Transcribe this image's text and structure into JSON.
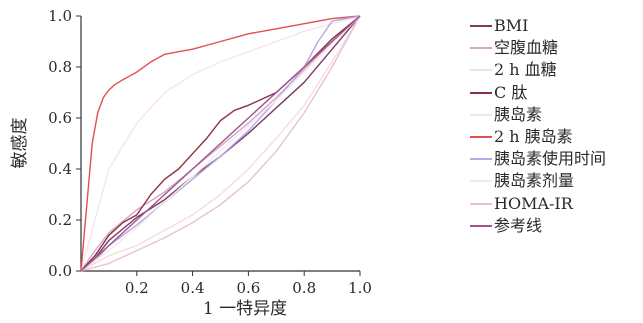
{
  "chart_data": {
    "type": "line",
    "title": "",
    "xlabel": "1 一特异度",
    "ylabel": "敏感度",
    "xlim": [
      0,
      1
    ],
    "ylim": [
      0,
      1
    ],
    "x_ticks": [
      "0.2",
      "0.4",
      "0.6",
      "0.8",
      "1.0"
    ],
    "y_ticks": [
      "0.0",
      "0.2",
      "0.4",
      "0.6",
      "0.8",
      "1.0"
    ],
    "legend_position": "right",
    "grid": false,
    "series": [
      {
        "name": "BMI",
        "color": "#7a3a64",
        "x": [
          0,
          0.05,
          0.1,
          0.2,
          0.3,
          0.4,
          0.5,
          0.6,
          0.7,
          0.8,
          0.9,
          1.0
        ],
        "y": [
          0,
          0.05,
          0.12,
          0.21,
          0.28,
          0.37,
          0.45,
          0.54,
          0.64,
          0.74,
          0.87,
          1.0
        ]
      },
      {
        "name": "空腹血糖",
        "color": "#d6a6c4",
        "x": [
          0,
          0.05,
          0.1,
          0.2,
          0.3,
          0.4,
          0.5,
          0.6,
          0.7,
          0.8,
          0.9,
          1.0
        ],
        "y": [
          0,
          0.08,
          0.15,
          0.24,
          0.31,
          0.4,
          0.49,
          0.58,
          0.68,
          0.79,
          0.9,
          1.0
        ]
      },
      {
        "name": "2 h 血糖",
        "color": "#f3dede",
        "x": [
          0,
          0.1,
          0.2,
          0.3,
          0.4,
          0.5,
          0.6,
          0.7,
          0.8,
          0.9,
          1.0
        ],
        "y": [
          0,
          0.06,
          0.1,
          0.16,
          0.22,
          0.3,
          0.4,
          0.52,
          0.65,
          0.82,
          1.0
        ]
      },
      {
        "name": "C 肽",
        "color": "#8e2f45",
        "x": [
          0,
          0.05,
          0.1,
          0.15,
          0.2,
          0.25,
          0.3,
          0.35,
          0.4,
          0.45,
          0.5,
          0.55,
          0.6,
          0.7,
          0.8,
          0.9,
          1.0
        ],
        "y": [
          0,
          0.06,
          0.14,
          0.19,
          0.22,
          0.3,
          0.36,
          0.4,
          0.46,
          0.52,
          0.59,
          0.63,
          0.65,
          0.7,
          0.8,
          0.91,
          1.0
        ]
      },
      {
        "name": "胰岛素",
        "color": "#f7e4ea",
        "x": [
          0,
          0.05,
          0.1,
          0.2,
          0.3,
          0.4,
          0.5,
          0.6,
          0.7,
          0.8,
          0.9,
          1.0
        ],
        "y": [
          0,
          0.2,
          0.4,
          0.58,
          0.7,
          0.77,
          0.82,
          0.86,
          0.9,
          0.94,
          0.97,
          1.0
        ]
      },
      {
        "name": "2 h 胰岛素",
        "color": "#e2504e",
        "x": [
          0,
          0.02,
          0.04,
          0.06,
          0.08,
          0.1,
          0.12,
          0.15,
          0.2,
          0.25,
          0.3,
          0.35,
          0.4,
          0.5,
          0.6,
          0.7,
          0.8,
          0.9,
          1.0
        ],
        "y": [
          0,
          0.25,
          0.5,
          0.62,
          0.68,
          0.71,
          0.73,
          0.75,
          0.78,
          0.82,
          0.85,
          0.86,
          0.87,
          0.9,
          0.93,
          0.95,
          0.97,
          0.99,
          1.0
        ]
      },
      {
        "name": "胰岛素使用时间",
        "color": "#b6a8e2",
        "x": [
          0,
          0.05,
          0.1,
          0.2,
          0.3,
          0.4,
          0.5,
          0.6,
          0.7,
          0.8,
          0.85,
          0.9,
          1.0
        ],
        "y": [
          0,
          0.04,
          0.1,
          0.18,
          0.27,
          0.36,
          0.45,
          0.55,
          0.67,
          0.8,
          0.9,
          0.98,
          1.0
        ]
      },
      {
        "name": "胰岛素剂量",
        "color": "#f4eaea",
        "x": [
          0,
          0.1,
          0.2,
          0.3,
          0.4,
          0.5,
          0.6,
          0.7,
          0.8,
          0.9,
          1.0
        ],
        "y": [
          0,
          0.08,
          0.17,
          0.27,
          0.37,
          0.47,
          0.57,
          0.67,
          0.78,
          0.89,
          1.0
        ]
      },
      {
        "name": "HOMA-IR",
        "color": "#e9c0d8",
        "x": [
          0,
          0.1,
          0.2,
          0.3,
          0.4,
          0.5,
          0.6,
          0.7,
          0.8,
          0.9,
          1.0
        ],
        "y": [
          0,
          0.03,
          0.08,
          0.13,
          0.19,
          0.26,
          0.35,
          0.47,
          0.62,
          0.8,
          1.0
        ]
      },
      {
        "name": "参考线",
        "color": "#a0558e",
        "x": [
          0,
          1.0
        ],
        "y": [
          0,
          1.0
        ]
      }
    ]
  }
}
